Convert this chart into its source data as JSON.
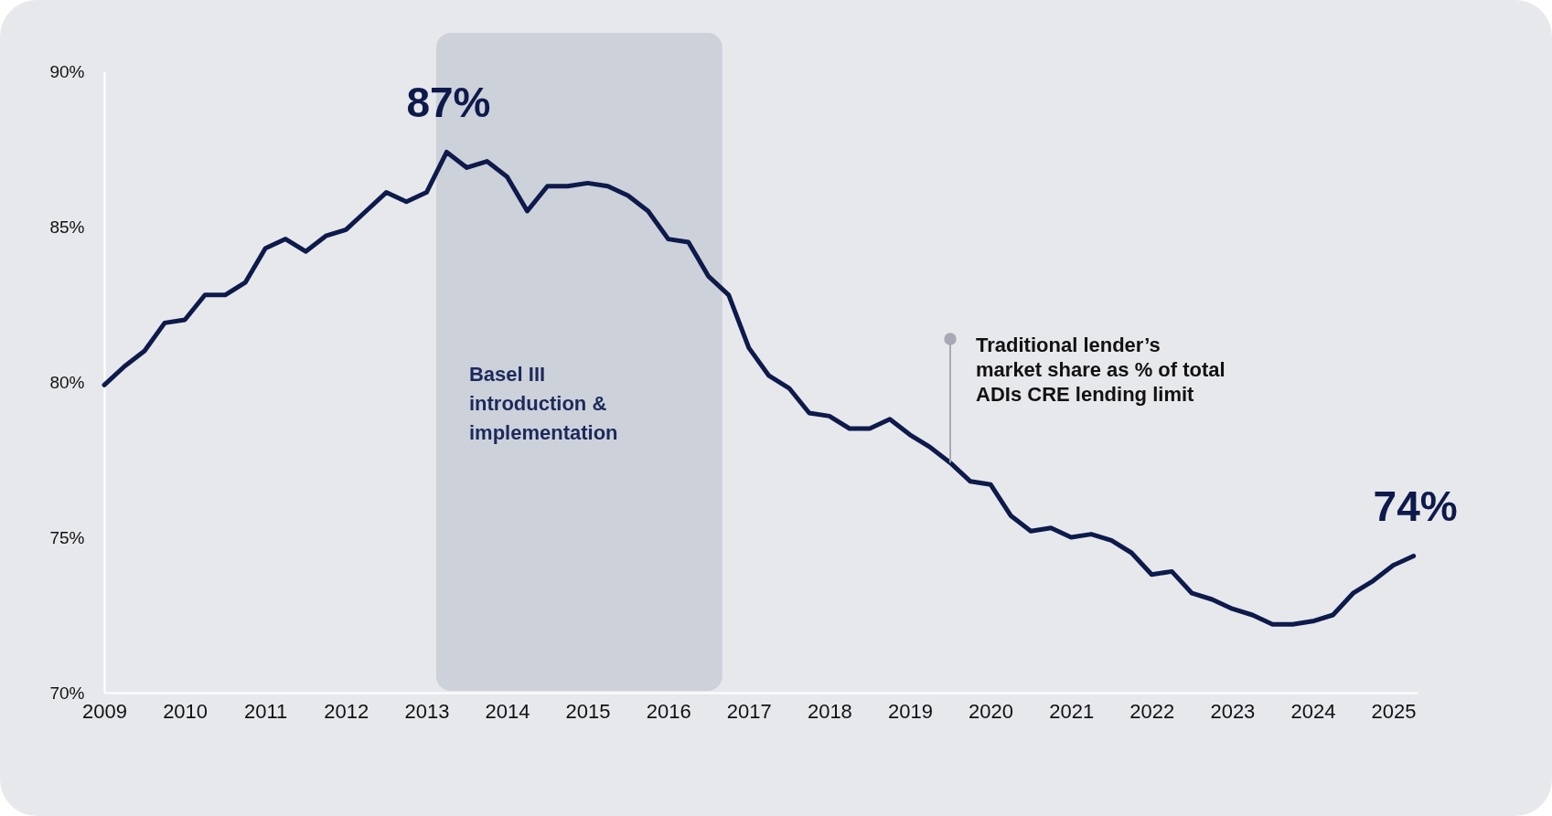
{
  "chart_data": {
    "type": "line",
    "x": [
      2009,
      2009.25,
      2009.5,
      2009.75,
      2010,
      2010.25,
      2010.5,
      2010.75,
      2011,
      2011.25,
      2011.5,
      2011.75,
      2012,
      2012.25,
      2012.5,
      2012.75,
      2013,
      2013.25,
      2013.5,
      2013.75,
      2014,
      2014.25,
      2014.5,
      2014.75,
      2015,
      2015.25,
      2015.5,
      2015.75,
      2016,
      2016.25,
      2016.5,
      2016.75,
      2017,
      2017.25,
      2017.5,
      2017.75,
      2018,
      2018.25,
      2018.5,
      2018.75,
      2019,
      2019.25,
      2019.5,
      2019.75,
      2020,
      2020.25,
      2020.5,
      2020.75,
      2021,
      2021.25,
      2021.5,
      2021.75,
      2022,
      2022.25,
      2022.5,
      2022.75,
      2023,
      2023.25,
      2023.5,
      2023.75,
      2024,
      2024.25,
      2024.5,
      2024.75,
      2025,
      2025.25
    ],
    "series": [
      {
        "color": "#0d1a4b",
        "values": [
          79.9,
          80.5,
          81.0,
          81.9,
          82.0,
          82.8,
          82.8,
          83.2,
          84.3,
          84.6,
          84.2,
          84.7,
          84.9,
          85.5,
          86.1,
          85.8,
          86.1,
          87.4,
          86.9,
          87.1,
          86.6,
          85.5,
          86.3,
          86.3,
          86.4,
          86.3,
          86.0,
          85.5,
          84.6,
          84.5,
          83.4,
          82.8,
          81.1,
          80.2,
          79.8,
          79.0,
          78.9,
          78.5,
          78.5,
          78.8,
          78.3,
          77.9,
          77.4,
          76.8,
          76.7,
          75.7,
          75.2,
          75.3,
          75.0,
          75.1,
          74.9,
          74.5,
          73.8,
          73.9,
          73.2,
          73.0,
          72.7,
          72.5,
          72.2,
          72.2,
          72.3,
          72.5,
          73.2,
          73.6,
          74.1,
          74.4
        ]
      }
    ],
    "xlim": [
      2009,
      2025.3
    ],
    "xticks": [
      2009,
      2010,
      2011,
      2012,
      2013,
      2014,
      2015,
      2016,
      2017,
      2018,
      2019,
      2020,
      2021,
      2022,
      2023,
      2024,
      2025
    ],
    "ylim": [
      70,
      90
    ],
    "yticks": [
      {
        "value": 70,
        "label": "70%"
      },
      {
        "value": 75,
        "label": "75%"
      },
      {
        "value": 80,
        "label": "80%"
      },
      {
        "value": 85,
        "label": "85%"
      },
      {
        "value": 90,
        "label": "90%"
      }
    ],
    "grid": false,
    "legend": false,
    "line_style": "solid",
    "marker": "none",
    "bands": [
      {
        "axis": "x",
        "from": 2013.12,
        "to": 2016.67,
        "label": "Basel III introduction & implementation",
        "color": "#cdd1da"
      }
    ],
    "annotations": [
      {
        "text": "87%",
        "x": 2013.25,
        "y": 87.4
      },
      {
        "text": "74%",
        "x": 2025.25,
        "y": 74.4
      },
      {
        "text": "Traditional lender’s market share as % of total ADIs CRE lending limit",
        "x": 2019.5,
        "y": 77.4
      }
    ]
  }
}
